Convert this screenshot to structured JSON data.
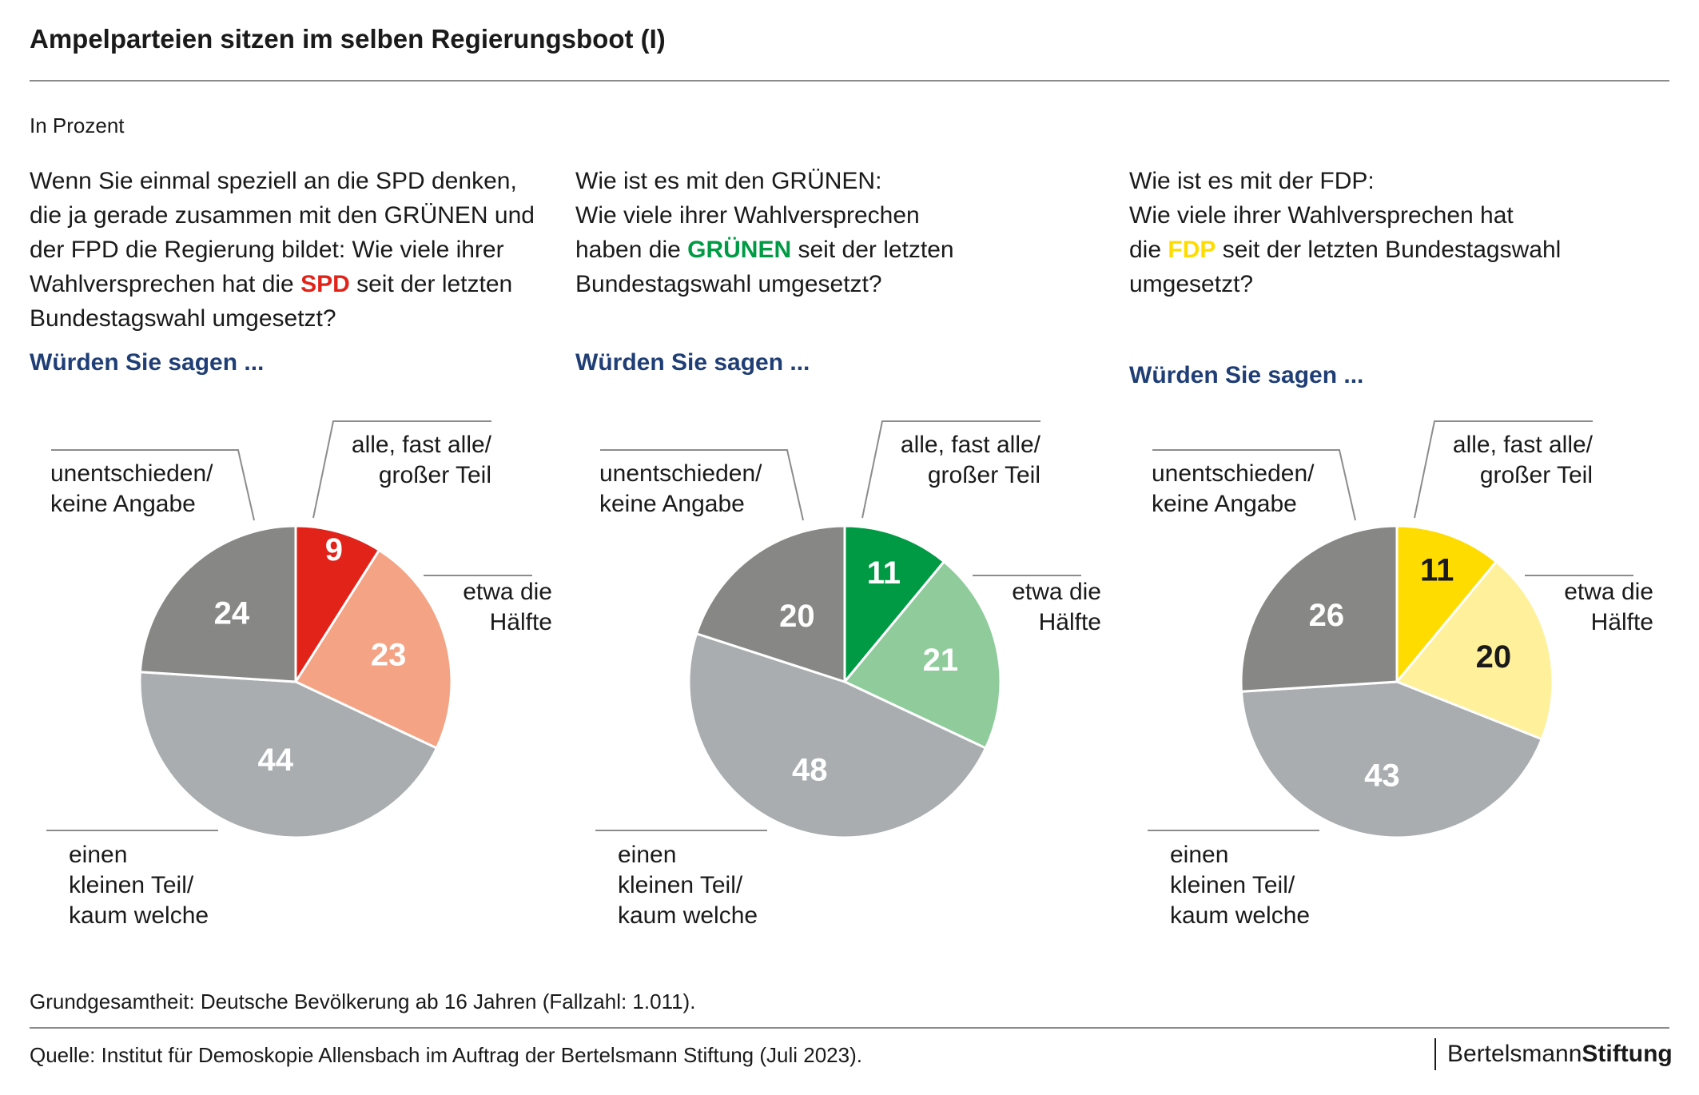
{
  "title": "Ampelparteien sitzen im selben Regierungsboot (I)",
  "unit": "In Prozent",
  "sub_label": "Würden Sie sagen ...",
  "questions": [
    {
      "lines": [
        [
          "Wenn Sie einmal speziell an die SPD denken,"
        ],
        [
          "die ja gerade zusammen mit den GRÜNEN und"
        ],
        [
          "der FPD die Regierung bildet: Wie viele ihrer"
        ],
        [
          "Wahlversprechen hat die ",
          "SPD",
          " seit der letzten"
        ],
        [
          "Bundestagswahl umgesetzt?"
        ]
      ]
    },
    {
      "lines": [
        [
          "Wie ist es mit den GRÜNEN:"
        ],
        [
          "Wie viele ihrer Wahlversprechen"
        ],
        [
          "haben die ",
          "GRÜNEN",
          " seit der letzten"
        ],
        [
          "Bundestagswahl umgesetzt?"
        ]
      ]
    },
    {
      "lines": [
        [
          "Wie ist es mit der FDP:"
        ],
        [
          "Wie viele ihrer Wahlversprechen hat"
        ],
        [
          "die ",
          "FDP",
          " seit der letzten Bundestagswahl"
        ],
        [
          "umgesetzt?"
        ]
      ]
    }
  ],
  "chart_data": [
    {
      "type": "pie",
      "party": "SPD",
      "highlight_color": "#e2231a",
      "slices": [
        {
          "label": "alle, fast alle/ großer Teil",
          "value": 9,
          "color": "#e2231a",
          "text_color": "#ffffff"
        },
        {
          "label": "etwa die Hälfte",
          "value": 23,
          "color": "#f4a384",
          "text_color": "#ffffff"
        },
        {
          "label": "einen kleinen Teil/ kaum welche",
          "value": 44,
          "color": "#a9adb0",
          "text_color": "#ffffff"
        },
        {
          "label": "unentschieden/ keine Angabe",
          "value": 24,
          "color": "#878786",
          "text_color": "#ffffff"
        }
      ]
    },
    {
      "type": "pie",
      "party": "GRÜNEN",
      "highlight_color": "#009a44",
      "slices": [
        {
          "label": "alle, fast alle/ großer Teil",
          "value": 11,
          "color": "#009a44",
          "text_color": "#ffffff"
        },
        {
          "label": "etwa die Hälfte",
          "value": 21,
          "color": "#8fcb9b",
          "text_color": "#ffffff"
        },
        {
          "label": "einen kleinen Teil/ kaum welche",
          "value": 48,
          "color": "#a9adb0",
          "text_color": "#ffffff"
        },
        {
          "label": "unentschieden/ keine Angabe",
          "value": 20,
          "color": "#878786",
          "text_color": "#ffffff"
        }
      ]
    },
    {
      "type": "pie",
      "party": "FDP",
      "highlight_color": "#ffdc00",
      "slices": [
        {
          "label": "alle, fast alle/ großer Teil",
          "value": 11,
          "color": "#ffdc00",
          "text_color": "#1a1a1a"
        },
        {
          "label": "etwa die Hälfte",
          "value": 20,
          "color": "#fff09b",
          "text_color": "#1a1a1a"
        },
        {
          "label": "einen kleinen Teil/ kaum welche",
          "value": 43,
          "color": "#a9adb0",
          "text_color": "#ffffff"
        },
        {
          "label": "unentschieden/ keine Angabe",
          "value": 26,
          "color": "#878786",
          "text_color": "#ffffff"
        }
      ]
    }
  ],
  "callouts": [
    {
      "lines": [
        "alle, fast alle/",
        "großer Teil"
      ]
    },
    {
      "lines": [
        "etwa die",
        "Hälfte"
      ]
    },
    {
      "lines": [
        "einen",
        "kleinen Teil/",
        "kaum welche"
      ]
    },
    {
      "lines": [
        "unentschieden/",
        "keine Angabe"
      ]
    }
  ],
  "footnote": "Grundgesamtheit: Deutsche Bevölkerung ab 16 Jahren (Fallzahl: 1.011).",
  "source": "Quelle: Institut für Demoskopie Allensbach im Auftrag der Bertelsmann Stiftung (Juli 2023).",
  "brand": {
    "part1": "Bertelsmann",
    "part2": "Stiftung"
  }
}
